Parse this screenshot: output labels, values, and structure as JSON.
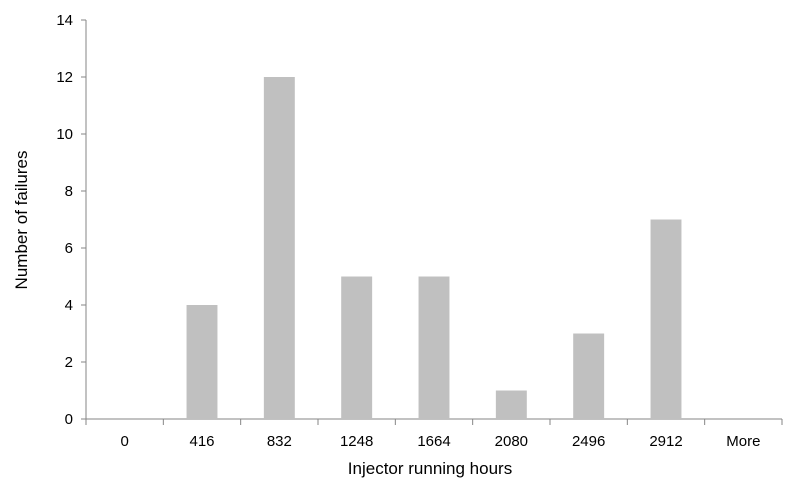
{
  "chart_data": {
    "type": "bar",
    "title": "",
    "xlabel": "Injector running hours",
    "ylabel": "Number of failures",
    "categories": [
      "0",
      "416",
      "832",
      "1248",
      "1664",
      "2080",
      "2496",
      "2912",
      "More"
    ],
    "values": [
      0,
      4,
      12,
      5,
      5,
      1,
      3,
      7,
      0
    ],
    "ylim": [
      0,
      14
    ],
    "yticks": [
      "0",
      "2",
      "4",
      "6",
      "8",
      "10",
      "12",
      "14"
    ],
    "grid": false,
    "legend": "none",
    "bar_color": "#c0c0c0",
    "axis_color": "#868686"
  }
}
